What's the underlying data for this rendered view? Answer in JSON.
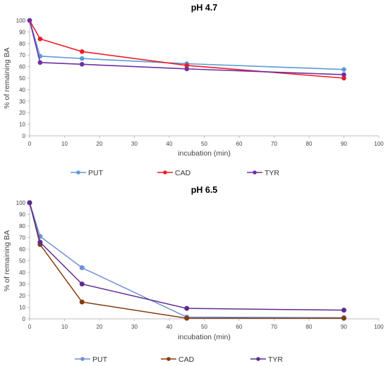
{
  "chart_data": [
    {
      "type": "line",
      "title": "pH 4.7",
      "xlabel": "incubation (min)",
      "ylabel": "% of remaining BA",
      "xlim": [
        0,
        100
      ],
      "ylim": [
        0,
        100
      ],
      "xticks": [
        0,
        10,
        20,
        30,
        40,
        50,
        60,
        70,
        80,
        90,
        100
      ],
      "yticks": [
        0,
        10,
        20,
        30,
        40,
        50,
        60,
        70,
        80,
        90,
        100
      ],
      "grid": false,
      "legend_position": "bottom",
      "series": [
        {
          "name": "PUT",
          "color": "#5B9BD5",
          "x": [
            0,
            3,
            15,
            45,
            90
          ],
          "y": [
            100,
            69,
            67,
            62.5,
            57.5
          ]
        },
        {
          "name": "CAD",
          "color": "#EE1C25",
          "x": [
            0,
            3,
            15,
            45,
            90
          ],
          "y": [
            100,
            84,
            73,
            61,
            50
          ]
        },
        {
          "name": "TYR",
          "color": "#7030A0",
          "x": [
            0,
            3,
            15,
            45,
            90
          ],
          "y": [
            100,
            63.5,
            62,
            58,
            53
          ]
        }
      ]
    },
    {
      "type": "line",
      "title": "pH 6.5",
      "xlabel": "incubation (min)",
      "ylabel": "% of remaining BA",
      "xlim": [
        0,
        100
      ],
      "ylim": [
        0,
        100
      ],
      "xticks": [
        0,
        10,
        20,
        30,
        40,
        50,
        60,
        70,
        80,
        90,
        100
      ],
      "yticks": [
        0,
        10,
        20,
        30,
        40,
        50,
        60,
        70,
        80,
        90,
        100
      ],
      "grid": false,
      "legend_position": "bottom",
      "series": [
        {
          "name": "PUT",
          "color": "#6F8FD0",
          "x": [
            0,
            3,
            15,
            45,
            90
          ],
          "y": [
            100,
            71,
            44,
            1.5,
            1
          ]
        },
        {
          "name": "CAD",
          "color": "#843C0C",
          "x": [
            0,
            3,
            15,
            45,
            90
          ],
          "y": [
            100,
            64,
            14.5,
            0.5,
            0.5
          ]
        },
        {
          "name": "TYR",
          "color": "#5B2D90",
          "x": [
            0,
            3,
            15,
            45,
            90
          ],
          "y": [
            100,
            66,
            30,
            9,
            7.5
          ]
        }
      ]
    }
  ]
}
